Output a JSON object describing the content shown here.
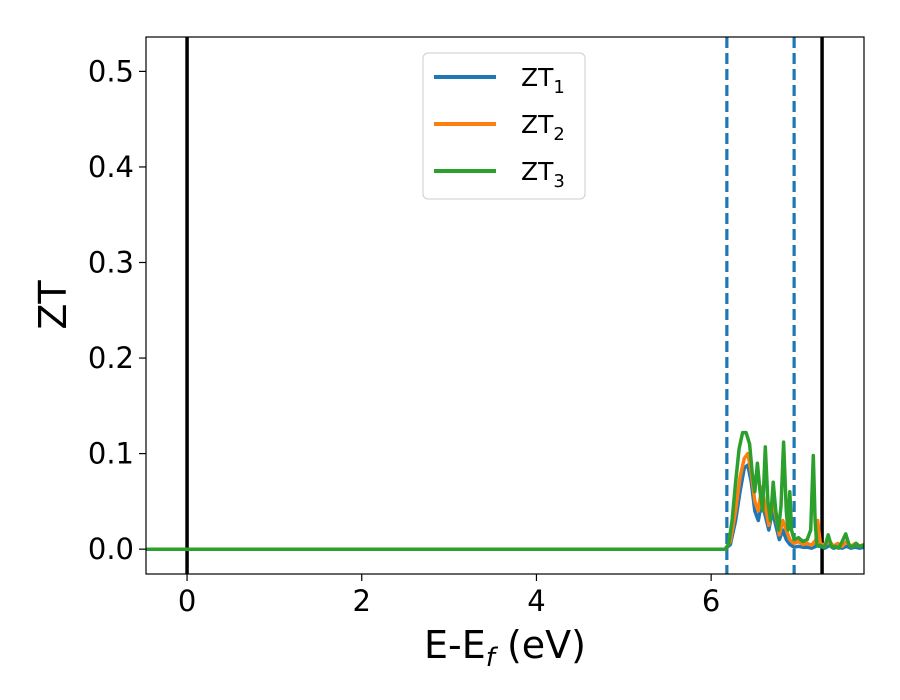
{
  "chart_data": {
    "type": "line",
    "xlabel": "E-E",
    "xlabel_subscript": "f",
    "xlabel_unit": " (eV)",
    "ylabel": "ZT",
    "xlim": [
      -0.47,
      7.75
    ],
    "ylim": [
      -0.026,
      0.536
    ],
    "xticks": [
      0,
      2,
      4,
      6
    ],
    "xtick_labels": [
      "0",
      "2",
      "4",
      "6"
    ],
    "yticks": [
      0.0,
      0.1,
      0.2,
      0.3,
      0.4,
      0.5
    ],
    "ytick_labels": [
      "0.0",
      "0.1",
      "0.2",
      "0.3",
      "0.4",
      "0.5"
    ],
    "grid": false,
    "legend_position": "top-center",
    "vlines": [
      {
        "x": 0.0,
        "style": "solid",
        "color": "#000000"
      },
      {
        "x": 7.27,
        "style": "solid",
        "color": "#000000"
      },
      {
        "x": 6.18,
        "style": "dashed",
        "color": "#1f77b4"
      },
      {
        "x": 6.95,
        "style": "dashed",
        "color": "#1f77b4"
      }
    ],
    "series": [
      {
        "name": "ZT",
        "subscript": "1",
        "color": "#1f77b4",
        "x": [
          -0.47,
          6.16,
          6.22,
          6.28,
          6.33,
          6.38,
          6.42,
          6.46,
          6.5,
          6.54,
          6.58,
          6.62,
          6.66,
          6.7,
          6.74,
          6.78,
          6.82,
          6.86,
          6.9,
          6.95,
          7.0,
          7.05,
          7.1,
          7.15,
          7.2,
          7.22,
          7.25,
          7.3,
          7.36,
          7.4,
          7.45,
          7.5,
          7.55,
          7.6,
          7.65,
          7.7,
          7.75
        ],
        "y": [
          0.0,
          0.0,
          0.005,
          0.03,
          0.06,
          0.085,
          0.088,
          0.07,
          0.04,
          0.03,
          0.05,
          0.035,
          0.02,
          0.04,
          0.025,
          0.01,
          0.02,
          0.01,
          0.005,
          0.002,
          0.003,
          0.002,
          0.002,
          0.001,
          0.003,
          0.015,
          0.003,
          0.001,
          0.004,
          0.001,
          0.002,
          0.001,
          0.003,
          0.001,
          0.002,
          0.001,
          0.002
        ]
      },
      {
        "name": "ZT",
        "subscript": "2",
        "color": "#ff7f0e",
        "x": [
          -0.47,
          6.16,
          6.22,
          6.28,
          6.33,
          6.38,
          6.42,
          6.46,
          6.5,
          6.54,
          6.58,
          6.62,
          6.66,
          6.7,
          6.74,
          6.78,
          6.82,
          6.86,
          6.9,
          6.95,
          7.0,
          7.05,
          7.1,
          7.15,
          7.2,
          7.22,
          7.25,
          7.3,
          7.36,
          7.4,
          7.45,
          7.5,
          7.55,
          7.6,
          7.65,
          7.7,
          7.75
        ],
        "y": [
          0.0,
          0.0,
          0.008,
          0.04,
          0.075,
          0.095,
          0.1,
          0.08,
          0.05,
          0.04,
          0.065,
          0.045,
          0.025,
          0.05,
          0.035,
          0.015,
          0.03,
          0.02,
          0.01,
          0.006,
          0.008,
          0.005,
          0.006,
          0.004,
          0.01,
          0.03,
          0.006,
          0.004,
          0.008,
          0.003,
          0.006,
          0.003,
          0.008,
          0.003,
          0.006,
          0.003,
          0.005
        ]
      },
      {
        "name": "ZT",
        "subscript": "3",
        "color": "#2ca02c",
        "x": [
          -0.47,
          6.16,
          6.2,
          6.24,
          6.28,
          6.32,
          6.36,
          6.4,
          6.44,
          6.47,
          6.5,
          6.53,
          6.56,
          6.59,
          6.62,
          6.65,
          6.68,
          6.71,
          6.74,
          6.77,
          6.8,
          6.83,
          6.86,
          6.88,
          6.9,
          6.92,
          6.95,
          7.0,
          7.05,
          7.1,
          7.14,
          7.17,
          7.19,
          7.21,
          7.23,
          7.25,
          7.3,
          7.34,
          7.38,
          7.42,
          7.46,
          7.5,
          7.54,
          7.58,
          7.62,
          7.66,
          7.7,
          7.75
        ],
        "y": [
          0.0,
          0.0,
          0.005,
          0.03,
          0.07,
          0.105,
          0.122,
          0.122,
          0.11,
          0.08,
          0.06,
          0.09,
          0.06,
          0.04,
          0.107,
          0.05,
          0.03,
          0.07,
          0.04,
          0.02,
          0.045,
          0.112,
          0.04,
          0.02,
          0.06,
          0.02,
          0.01,
          0.012,
          0.008,
          0.01,
          0.02,
          0.098,
          0.03,
          0.005,
          0.003,
          0.004,
          0.002,
          0.015,
          0.002,
          0.003,
          0.001,
          0.008,
          0.016,
          0.004,
          0.002,
          0.006,
          0.003,
          0.004
        ]
      }
    ]
  }
}
